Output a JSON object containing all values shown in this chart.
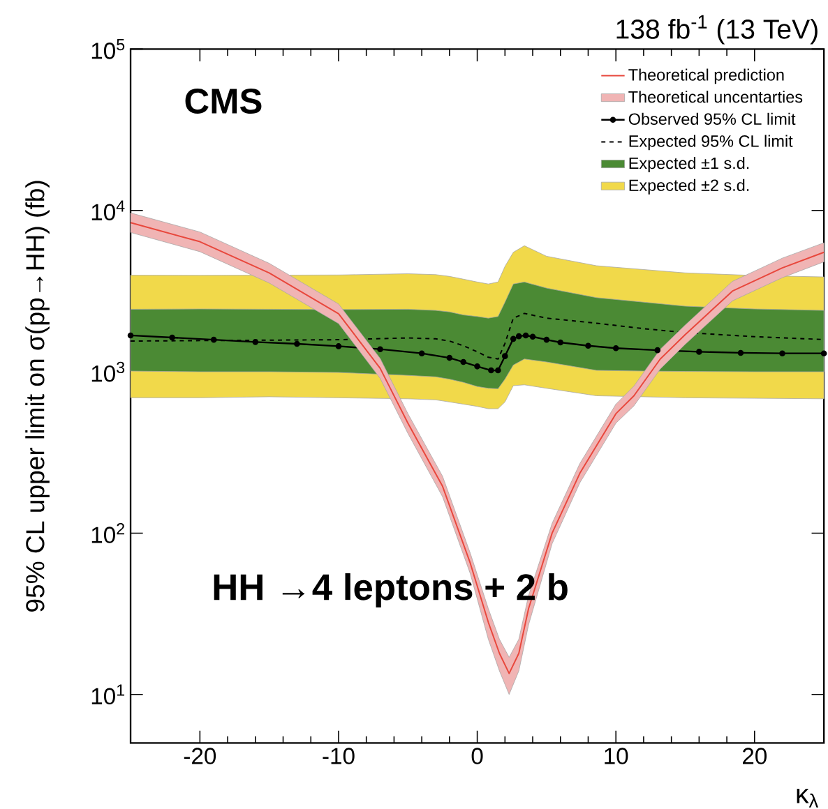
{
  "chart_data": {
    "type": "line",
    "title": "138 fb$^{-1}$ (13 TeV)",
    "xlabel": "κ$_{λ}$",
    "ylabel": "95% CL upper limit on σ(pp→HH) (fb)",
    "annotations": [
      "CMS",
      "HH →4 leptons + 2 b"
    ],
    "xlim": [
      -25,
      25
    ],
    "ylim": [
      5,
      100000
    ],
    "log": "y",
    "grid": false,
    "legend": "top right",
    "xticks": [
      -20,
      -10,
      0,
      10,
      20
    ],
    "yticks": [
      {
        "value": 10,
        "label": "10$^{1}$"
      },
      {
        "value": 100,
        "label": "10$^{2}$"
      },
      {
        "value": 1000,
        "label": "10$^{3}$"
      },
      {
        "value": 10000,
        "label": "10$^{4}$"
      },
      {
        "value": 100000,
        "label": "10$^{5}$"
      }
    ],
    "series": [
      {
        "name": "Expected ±2 s.d.",
        "color": "#f1d94a",
        "x": [
          -25,
          -20,
          -15,
          -10,
          -5,
          -3,
          -2,
          -1,
          0,
          0.8,
          1.5,
          2,
          2.6,
          3.4,
          5,
          8.6,
          12,
          15,
          20,
          25
        ],
        "values": [
          null,
          null,
          null,
          null,
          null,
          null,
          null,
          null,
          null,
          null,
          null,
          null,
          null,
          null,
          null,
          null,
          null,
          null,
          null,
          null
        ],
        "lower": [
          690,
          690,
          700,
          690,
          680,
          670,
          650,
          630,
          610,
          590,
          590,
          650,
          820,
          830,
          790,
          710,
          700,
          690,
          685,
          680
        ],
        "upper": [
          3970,
          3960,
          3970,
          3980,
          4050,
          4000,
          3900,
          3750,
          3600,
          3500,
          3600,
          4500,
          5500,
          6040,
          5200,
          4540,
          4300,
          4100,
          3950,
          3870
        ]
      },
      {
        "name": "Expected ±1 s.d.",
        "color": "#4b8a34",
        "x": [
          -25,
          -20,
          -15,
          -10,
          -5,
          -3,
          -2,
          -1,
          0,
          0.8,
          1.5,
          2,
          2.6,
          3.4,
          5,
          8.6,
          12,
          15,
          20,
          25
        ],
        "values": [
          null,
          null,
          null,
          null,
          null,
          null,
          null,
          null,
          null,
          null,
          null,
          null,
          null,
          null,
          null,
          null,
          null,
          null,
          null,
          null
        ],
        "lower": [
          1010,
          1000,
          1000,
          990,
          950,
          930,
          900,
          860,
          810,
          790,
          785,
          900,
          1100,
          1200,
          1150,
          1020,
          1010,
          1005,
          1000,
          1000
        ],
        "upper": [
          2440,
          2450,
          2440,
          2430,
          2440,
          2400,
          2350,
          2250,
          2200,
          2150,
          2200,
          2700,
          3500,
          3600,
          3300,
          2880,
          2700,
          2550,
          2450,
          2400
        ]
      },
      {
        "name": "Expected 95% CL limit",
        "color": "#000000",
        "line_style": "dashed",
        "x": [
          -25,
          -20,
          -15,
          -10,
          -5,
          -3,
          -2,
          -1,
          0,
          0.8,
          1.5,
          2,
          2.6,
          3.4,
          5,
          8.6,
          12,
          15,
          20,
          25
        ],
        "values": [
          1550,
          1560,
          1570,
          1580,
          1620,
          1600,
          1550,
          1450,
          1330,
          1230,
          1200,
          1500,
          2150,
          2300,
          2150,
          2000,
          1850,
          1750,
          1650,
          1585
        ]
      },
      {
        "name": "Observed 95% CL limit",
        "color": "#000000",
        "line_style": "solid",
        "marker": "circle",
        "x": [
          -25,
          -22,
          -19,
          -16,
          -13,
          -10,
          -7,
          -4,
          -2,
          -1,
          0,
          1,
          1.5,
          2,
          2.6,
          3,
          3.5,
          4,
          5,
          6,
          8,
          10,
          13,
          16,
          19,
          22,
          25
        ],
        "values": [
          1680,
          1630,
          1580,
          1530,
          1490,
          1440,
          1380,
          1300,
          1220,
          1150,
          1080,
          1020,
          1020,
          1250,
          1600,
          1660,
          1680,
          1650,
          1580,
          1520,
          1450,
          1400,
          1360,
          1330,
          1310,
          1300,
          1300
        ]
      },
      {
        "name": "Theoretical uncentarties",
        "color": "#f0b4b4",
        "x": [
          -25,
          -20,
          -15,
          -10,
          -7,
          -5,
          -2.5,
          -0.5,
          0.8,
          1.6,
          2.3,
          3,
          3.7,
          5.4,
          7.4,
          10,
          11.3,
          13.2,
          15,
          18.4,
          22,
          25
        ],
        "values": [
          null,
          null,
          null,
          null,
          null,
          null,
          null,
          null,
          null,
          null,
          null,
          null,
          null,
          null,
          null,
          null,
          null,
          null,
          null,
          null,
          null,
          null
        ],
        "lower": [
          7300,
          5550,
          3550,
          1990,
          910,
          415,
          168,
          56,
          22,
          14,
          10,
          14,
          27,
          86,
          205,
          480,
          615,
          1040,
          1480,
          2750,
          3830,
          4800
        ],
        "upper": [
          9650,
          7350,
          4700,
          2630,
          1210,
          550,
          225,
          75,
          34,
          22,
          17,
          22,
          41,
          115,
          270,
          630,
          815,
          1380,
          1950,
          3630,
          5060,
          6300
        ]
      },
      {
        "name": "Theoretical prediction",
        "color": "#e8473c",
        "line_style": "solid",
        "x": [
          -25,
          -20,
          -15,
          -10,
          -7,
          -5,
          -2.5,
          -0.5,
          0.8,
          1.6,
          2.3,
          3,
          3.7,
          5.4,
          7.4,
          10,
          11.3,
          13.2,
          15,
          18.4,
          22,
          25
        ],
        "values": [
          8400,
          6400,
          4100,
          2290,
          1050,
          480,
          195,
          65,
          28,
          18,
          13.5,
          18,
          34,
          100,
          235,
          550,
          710,
          1200,
          1700,
          3160,
          4400,
          5500
        ]
      }
    ]
  }
}
